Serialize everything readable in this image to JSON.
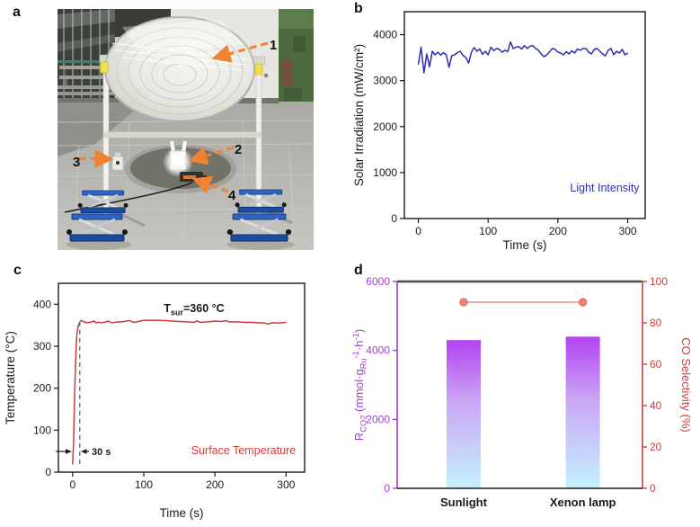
{
  "figure": {
    "panel_letters": {
      "a": "a",
      "b": "b",
      "c": "c",
      "d": "d"
    }
  },
  "photo": {
    "labels": [
      "1",
      "2",
      "3",
      "4"
    ],
    "arrow_color": "#ee8433"
  },
  "chart_data": [
    {
      "id": "b",
      "type": "line",
      "title": "",
      "xlabel": "Time (s)",
      "ylabel": "Solar Irradiation (mW/cm²)",
      "xlim": [
        -20,
        325
      ],
      "ylim": [
        0,
        4500
      ],
      "xticks": [
        0,
        100,
        200,
        300
      ],
      "yticks": [
        0,
        1000,
        2000,
        3000,
        4000
      ],
      "grid": false,
      "legend": {
        "label": "Light Intensity",
        "color": "#2f2fb0",
        "position": "lower right"
      },
      "line_color": "#2f2fb0",
      "series": [
        {
          "name": "Light Intensity",
          "x": [
            0,
            4,
            8,
            12,
            16,
            20,
            24,
            28,
            32,
            36,
            40,
            44,
            48,
            52,
            56,
            60,
            64,
            68,
            72,
            76,
            80,
            84,
            88,
            92,
            96,
            100,
            104,
            108,
            112,
            116,
            120,
            124,
            128,
            132,
            136,
            140,
            144,
            148,
            152,
            156,
            160,
            164,
            168,
            172,
            176,
            180,
            184,
            188,
            192,
            196,
            200,
            204,
            208,
            212,
            216,
            220,
            224,
            228,
            232,
            236,
            240,
            244,
            248,
            252,
            256,
            260,
            264,
            268,
            272,
            276,
            280,
            284,
            288,
            292,
            296,
            300
          ],
          "y": [
            3350,
            3730,
            3170,
            3580,
            3300,
            3640,
            3560,
            3620,
            3555,
            3610,
            3560,
            3290,
            3545,
            3560,
            3610,
            3640,
            3550,
            3500,
            3380,
            3620,
            3720,
            3640,
            3690,
            3570,
            3640,
            3560,
            3730,
            3650,
            3700,
            3680,
            3620,
            3660,
            3630,
            3840,
            3700,
            3730,
            3740,
            3690,
            3760,
            3700,
            3750,
            3760,
            3700,
            3660,
            3580,
            3520,
            3560,
            3630,
            3700,
            3680,
            3620,
            3600,
            3560,
            3630,
            3580,
            3650,
            3600,
            3690,
            3660,
            3700,
            3700,
            3620,
            3580,
            3680,
            3700,
            3640,
            3580,
            3540,
            3660,
            3700,
            3560,
            3640,
            3600,
            3680,
            3560,
            3600
          ]
        }
      ]
    },
    {
      "id": "c",
      "type": "line",
      "title": "",
      "xlabel": "Time (s)",
      "ylabel": "Temperature (°C)",
      "xlim": [
        -20,
        326
      ],
      "ylim": [
        0,
        450
      ],
      "xticks": [
        0,
        100,
        200,
        300
      ],
      "yticks": [
        0,
        100,
        200,
        300,
        400
      ],
      "grid": false,
      "legend": {
        "label": "Surface Temperature",
        "color": "#d63c36",
        "position": "lower right"
      },
      "line_color": "#cc3b36",
      "annotations": {
        "tsur_parts": [
          {
            "t": "T",
            "s": "n"
          },
          {
            "t": "sur",
            "s": "sub"
          },
          {
            "t": "=360 °C",
            "s": "n"
          }
        ],
        "rise_time_label": "30 s",
        "dashed_line_x": 10
      },
      "series": [
        {
          "name": "Surface Temperature",
          "x": [
            0,
            1,
            2,
            3,
            4,
            5,
            6,
            8,
            10,
            12,
            16,
            20,
            25,
            30,
            33,
            36,
            40,
            45,
            50,
            55,
            60,
            65,
            70,
            75,
            80,
            85,
            90,
            95,
            100,
            110,
            120,
            130,
            140,
            150,
            160,
            170,
            175,
            180,
            190,
            200,
            210,
            215,
            220,
            230,
            240,
            250,
            260,
            270,
            275,
            280,
            290,
            300
          ],
          "y": [
            18,
            55,
            120,
            195,
            255,
            300,
            330,
            350,
            357,
            362,
            358,
            356,
            357,
            360,
            356,
            357,
            356,
            357,
            360,
            356,
            357,
            358,
            358,
            360,
            361,
            357,
            358,
            360,
            362,
            362,
            362,
            361,
            360,
            359,
            358,
            357,
            360,
            357,
            358,
            360,
            359,
            361,
            358,
            358,
            357,
            357,
            356,
            355,
            353,
            356,
            355,
            357
          ]
        }
      ]
    },
    {
      "id": "d",
      "type": "bar",
      "title": "",
      "categories": [
        "Sunlight",
        "Xenon lamp"
      ],
      "bar_values": [
        4300,
        4400
      ],
      "bar_axis": {
        "label_parts": [
          {
            "t": "R",
            "s": "n"
          },
          {
            "t": "CO2",
            "s": "sub"
          },
          {
            "t": " (mmol·g",
            "s": "n"
          },
          {
            "t": "Ru",
            "s": "sub"
          },
          {
            "t": "-1",
            "s": "sup"
          },
          {
            "t": "·h",
            "s": "n"
          },
          {
            "t": "-1",
            "s": "sup"
          },
          {
            "t": ")",
            "s": "n"
          }
        ],
        "lim": [
          0,
          6000
        ],
        "ticks": [
          0,
          2000,
          4000,
          6000
        ],
        "color": "#a13fd4"
      },
      "selectivity": {
        "name": "CO Selectivity",
        "values": [
          90,
          90
        ],
        "axis_label": "CO Selectivity (%)",
        "lim": [
          0,
          100
        ],
        "ticks": [
          0,
          20,
          40,
          60,
          80,
          100
        ],
        "color": "#c9403f",
        "marker_color": "#e9837d",
        "line_color": "#ec938c"
      },
      "bar_gradient": {
        "top": "#b243f0",
        "mid": "#cba7f5",
        "bottom": "#c3f2fc"
      },
      "top_axis_color": "#4a4a4a",
      "bottom_axis_color": "#1a1a1a"
    }
  ]
}
